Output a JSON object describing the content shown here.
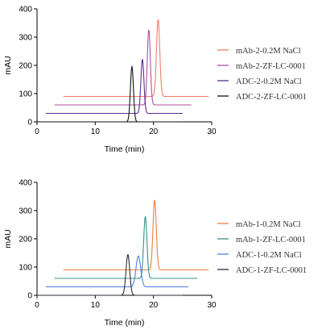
{
  "chart_data": [
    {
      "type": "line",
      "title": "",
      "xlabel": "Time (min)",
      "ylabel": "mAU",
      "xlim": [
        0,
        30
      ],
      "ylim": [
        0,
        400
      ],
      "x_ticks": [
        "0",
        "10",
        "20",
        "30"
      ],
      "y_ticks": [
        "0",
        "100",
        "200",
        "300",
        "400"
      ],
      "grid": false,
      "legend_position": "right",
      "series": [
        {
          "name": "mAb-2-0.2M NaCl",
          "color": "#f07c6a",
          "baseline": 90,
          "x_start": 4.5,
          "x_end": 29.5,
          "peak_x": 20.8,
          "peak_y": 365,
          "width": 0.28
        },
        {
          "name": "mAb-2-ZF-LC-0001",
          "color": "#b0509e",
          "baseline": 60,
          "x_start": 3.0,
          "x_end": 26.5,
          "peak_x": 19.2,
          "peak_y": 328,
          "width": 0.26
        },
        {
          "name": "ADC-2-0.2M NaCl",
          "color": "#5a2d91",
          "baseline": 30,
          "x_start": 1.5,
          "x_end": 25.0,
          "peak_x": 18.1,
          "peak_y": 223,
          "width": 0.26
        },
        {
          "name": "ADC-2-ZF-LC-0001",
          "color": "#111111",
          "baseline": 0,
          "x_start": 0.0,
          "x_end": 24.0,
          "peak_x": 16.3,
          "peak_y": 197,
          "width": 0.26
        }
      ]
    },
    {
      "type": "line",
      "title": "",
      "xlabel": "Time (min)",
      "ylabel": "mAU",
      "xlim": [
        0,
        30
      ],
      "ylim": [
        0,
        400
      ],
      "x_ticks": [
        "0",
        "10",
        "20",
        "30"
      ],
      "y_ticks": [
        "0",
        "100",
        "200",
        "300",
        "400"
      ],
      "grid": false,
      "legend_position": "right",
      "series": [
        {
          "name": "mAb-1-0.2M NaCl",
          "color": "#f07c3a",
          "baseline": 90,
          "x_start": 4.5,
          "x_end": 29.5,
          "peak_x": 20.2,
          "peak_y": 338,
          "width": 0.28
        },
        {
          "name": "mAb-1-ZF-LC-0001",
          "color": "#3a8f8a",
          "baseline": 60,
          "x_start": 3.0,
          "x_end": 27.5,
          "peak_x": 18.6,
          "peak_y": 280,
          "width": 0.28
        },
        {
          "name": "ADC-1-0.2M NaCl",
          "color": "#4a7fe0",
          "baseline": 30,
          "x_start": 1.5,
          "x_end": 26.0,
          "peak_x": 17.4,
          "peak_y": 140,
          "width": 0.4
        },
        {
          "name": "ADC-1-ZF-LC-0001",
          "color": "#2c2c3a",
          "baseline": 0,
          "x_start": 0.0,
          "x_end": 25.0,
          "peak_x": 15.6,
          "peak_y": 145,
          "width": 0.32
        }
      ]
    }
  ]
}
